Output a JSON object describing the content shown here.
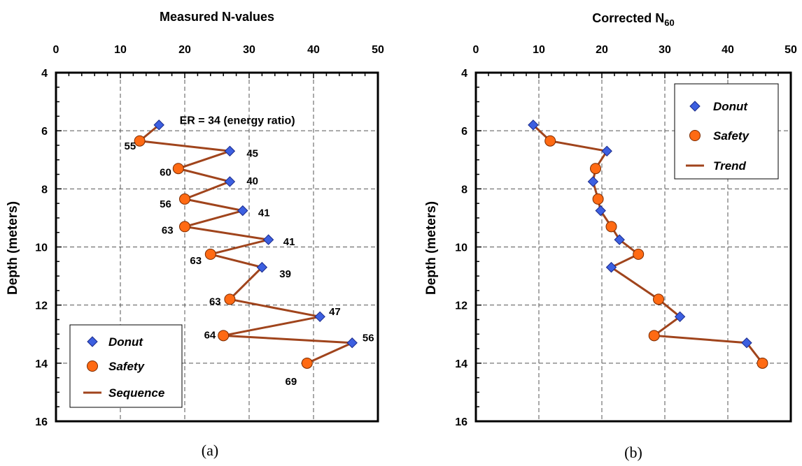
{
  "chart_data": [
    {
      "type": "scatter",
      "title": "Measured N-values",
      "xlabel": "",
      "ylabel": "Depth (meters)",
      "xlim": [
        0,
        50
      ],
      "ylim": [
        16,
        4
      ],
      "x_ticks": [
        "0",
        "10",
        "20",
        "30",
        "40",
        "50"
      ],
      "y_ticks": [
        "4",
        "6",
        "8",
        "10",
        "12",
        "14",
        "16"
      ],
      "x_axis_position": "top",
      "y_axis_inverted": true,
      "grid": true,
      "legend_position": "bottom-left",
      "series": [
        {
          "name": "Donut",
          "marker": "diamond",
          "color": "#3c5fe0",
          "points": [
            [
              16,
              5.8
            ],
            [
              27,
              6.7
            ],
            [
              27,
              7.75
            ],
            [
              29,
              8.75
            ],
            [
              33,
              9.75
            ],
            [
              32,
              10.7
            ],
            [
              41,
              12.4
            ],
            [
              46,
              13.3
            ]
          ]
        },
        {
          "name": "Safety",
          "marker": "circle",
          "color": "#ff6a13",
          "points": [
            [
              13,
              6.35
            ],
            [
              19,
              7.3
            ],
            [
              20,
              8.35
            ],
            [
              20,
              9.3
            ],
            [
              24,
              10.25
            ],
            [
              27,
              11.8
            ],
            [
              26,
              13.05
            ],
            [
              39,
              14.0
            ]
          ]
        },
        {
          "name": "Sequence",
          "line": true,
          "color": "#a0441c",
          "points": [
            [
              16,
              5.8
            ],
            [
              13,
              6.35
            ],
            [
              27,
              6.7
            ],
            [
              19,
              7.3
            ],
            [
              27,
              7.75
            ],
            [
              20,
              8.35
            ],
            [
              29,
              8.75
            ],
            [
              20,
              9.3
            ],
            [
              33,
              9.75
            ],
            [
              24,
              10.25
            ],
            [
              32,
              10.7
            ],
            [
              27,
              11.8
            ],
            [
              41,
              12.4
            ],
            [
              26,
              13.05
            ],
            [
              46,
              13.3
            ],
            [
              39,
              14.0
            ]
          ]
        }
      ],
      "annotations": [
        {
          "text": "ER = 34   (energy ratio)",
          "x": 19.2,
          "y": 5.62
        },
        {
          "text": "55",
          "x": 10.6,
          "y": 6.5
        },
        {
          "text": "45",
          "x": 29.6,
          "y": 6.75
        },
        {
          "text": "60",
          "x": 16.1,
          "y": 7.4
        },
        {
          "text": "40",
          "x": 29.6,
          "y": 7.7
        },
        {
          "text": "56",
          "x": 16.1,
          "y": 8.5
        },
        {
          "text": "41",
          "x": 31.4,
          "y": 8.8
        },
        {
          "text": "63",
          "x": 16.4,
          "y": 9.4
        },
        {
          "text": "41",
          "x": 35.3,
          "y": 9.8
        },
        {
          "text": "63",
          "x": 20.8,
          "y": 10.45
        },
        {
          "text": "39",
          "x": 34.7,
          "y": 10.9
        },
        {
          "text": "63",
          "x": 23.8,
          "y": 11.85
        },
        {
          "text": "47",
          "x": 42.4,
          "y": 12.2
        },
        {
          "text": "64",
          "x": 23.0,
          "y": 13.0
        },
        {
          "text": "56",
          "x": 47.6,
          "y": 13.1
        },
        {
          "text": "69",
          "x": 35.6,
          "y": 14.6
        }
      ],
      "caption": "(a)"
    },
    {
      "type": "scatter",
      "title": "Corrected N",
      "title_subscript": "60",
      "xlabel": "",
      "ylabel": "Depth (meters)",
      "xlim": [
        0,
        50
      ],
      "ylim": [
        16,
        4
      ],
      "x_ticks": [
        "0",
        "10",
        "20",
        "30",
        "40",
        "50"
      ],
      "y_ticks": [
        "4",
        "6",
        "8",
        "10",
        "12",
        "14",
        "16"
      ],
      "x_axis_position": "top",
      "y_axis_inverted": true,
      "grid": true,
      "legend_position": "top-right",
      "series": [
        {
          "name": "Donut",
          "marker": "diamond",
          "color": "#3c5fe0",
          "points": [
            [
              9.1,
              5.8
            ],
            [
              20.8,
              6.7
            ],
            [
              18.6,
              7.75
            ],
            [
              19.8,
              8.75
            ],
            [
              22.8,
              9.75
            ],
            [
              21.5,
              10.7
            ],
            [
              32.4,
              12.4
            ],
            [
              43.0,
              13.3
            ]
          ]
        },
        {
          "name": "Safety",
          "marker": "circle",
          "color": "#ff6a13",
          "points": [
            [
              11.8,
              6.35
            ],
            [
              19.0,
              7.3
            ],
            [
              19.4,
              8.35
            ],
            [
              21.5,
              9.3
            ],
            [
              25.8,
              10.25
            ],
            [
              29.0,
              11.8
            ],
            [
              28.3,
              13.05
            ],
            [
              45.5,
              14.0
            ]
          ]
        },
        {
          "name": "Trend",
          "line": true,
          "color": "#a0441c",
          "points": [
            [
              9.1,
              5.8
            ],
            [
              11.8,
              6.35
            ],
            [
              20.8,
              6.7
            ],
            [
              19.0,
              7.3
            ],
            [
              18.6,
              7.75
            ],
            [
              19.4,
              8.35
            ],
            [
              19.8,
              8.75
            ],
            [
              21.5,
              9.3
            ],
            [
              22.8,
              9.75
            ],
            [
              25.8,
              10.25
            ],
            [
              21.5,
              10.7
            ],
            [
              29.0,
              11.8
            ],
            [
              32.4,
              12.4
            ],
            [
              28.3,
              13.05
            ],
            [
              43.0,
              13.3
            ],
            [
              45.5,
              14.0
            ]
          ]
        }
      ],
      "caption": "(b)"
    }
  ]
}
